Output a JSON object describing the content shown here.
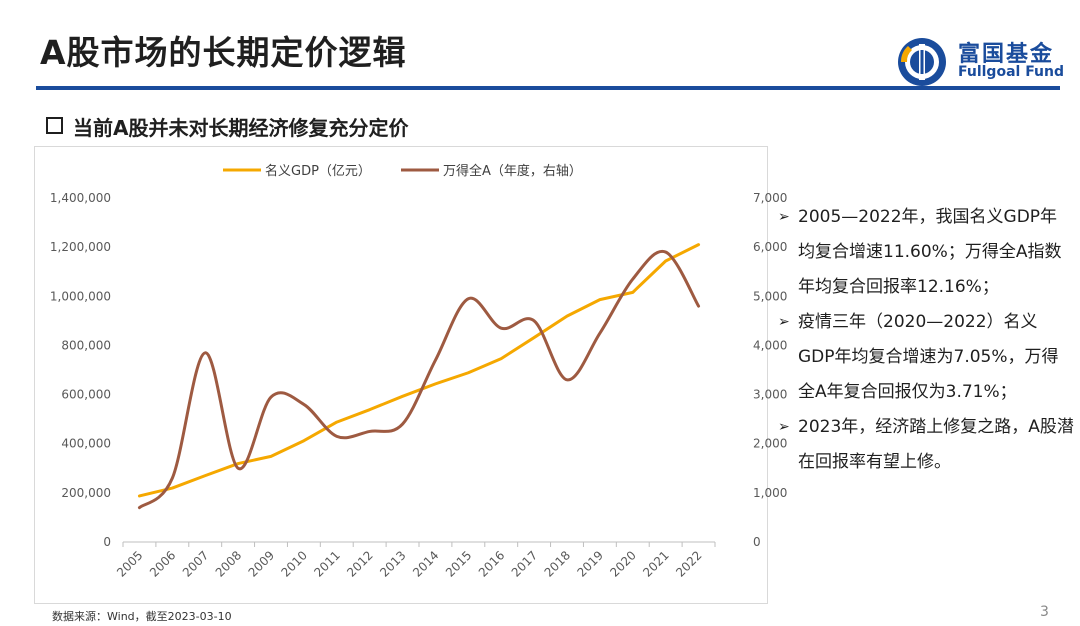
{
  "header": {
    "title": "A股市场的长期定价逻辑"
  },
  "logo": {
    "cn": "富国基金",
    "en": "Fullgoal Fund"
  },
  "subtitle": "当前A股并未对长期经济修复充分定价",
  "bullets": [
    "2005—2022年，我国名义GDP年均复合增速11.60%；万得全A指数年均复合回报率12.16%；",
    "疫情三年（2020—2022）名义GDP年均复合增速为7.05%，万得全A年复合回报仅为3.71%；",
    "2023年，经济踏上修复之路，A股潜在回报率有望上修。"
  ],
  "footer": {
    "source": "数据来源：Wind，截至2023-03-10",
    "page": "3"
  },
  "colors": {
    "gdp": "#f5a800",
    "wind_a": "#9e5a41",
    "accent": "#1a4c9c"
  },
  "chart_data": {
    "type": "line",
    "categories": [
      "2005",
      "2006",
      "2007",
      "2008",
      "2009",
      "2010",
      "2011",
      "2012",
      "2013",
      "2014",
      "2015",
      "2016",
      "2017",
      "2018",
      "2019",
      "2020",
      "2021",
      "2022"
    ],
    "series": [
      {
        "name": "名义GDP（亿元）",
        "axis": "left",
        "color": "#f5a800",
        "values": [
          187319,
          219439,
          270092,
          319245,
          348518,
          412119,
          487940,
          538580,
          592963,
          643563,
          688858,
          746395,
          832036,
          919281,
          986515,
          1015986,
          1143670,
          1210207
        ]
      },
      {
        "name": "万得全A（年度，右轴）",
        "axis": "right",
        "color": "#9e5a41",
        "values": [
          700,
          1300,
          3850,
          1500,
          2950,
          2800,
          2150,
          2250,
          2400,
          3700,
          4950,
          4350,
          4500,
          3300,
          4250,
          5350,
          5900,
          4800
        ]
      }
    ],
    "yleft": {
      "min": 0,
      "max": 1400000,
      "ticks": [
        "0",
        "200,000",
        "400,000",
        "600,000",
        "800,000",
        "1,000,000",
        "1,200,000",
        "1,400,000"
      ]
    },
    "yright": {
      "min": 0,
      "max": 7000,
      "ticks": [
        "0",
        "1,000",
        "2,000",
        "3,000",
        "4,000",
        "5,000",
        "6,000",
        "7,000"
      ]
    },
    "legend_position": "top",
    "grid": false
  }
}
